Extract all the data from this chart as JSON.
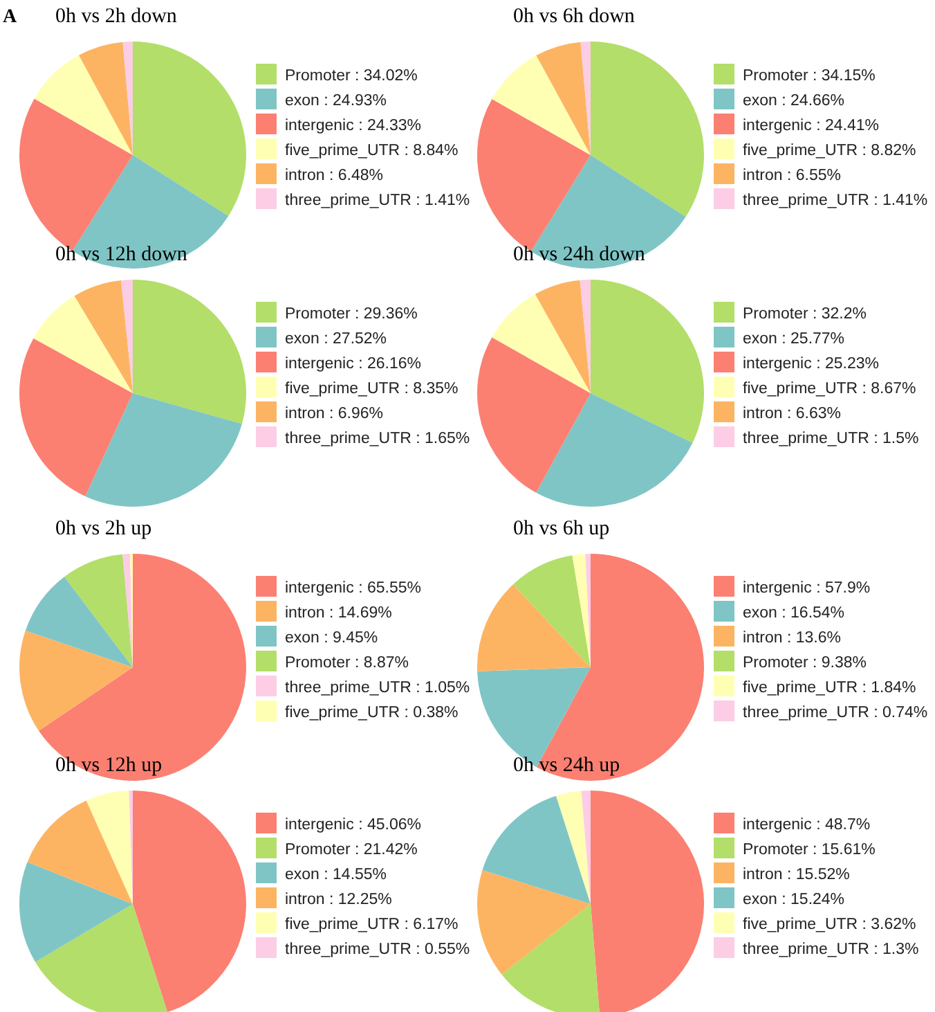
{
  "chart_data": [
    {
      "type": "pie",
      "title": "0h vs 2h down",
      "annotations": [
        "A"
      ],
      "categories": [
        "Promoter",
        "exon",
        "intergenic",
        "five_prime_UTR",
        "intron",
        "three_prime_UTR"
      ],
      "values": [
        34.02,
        24.93,
        24.33,
        8.84,
        6.48,
        1.41
      ],
      "value_labels": [
        ": 34.02%",
        ": 24.93%",
        ": 24.33%",
        ": 8.84%",
        ": 6.48%",
        ": 1.41%"
      ],
      "colors": [
        "#b3de69",
        "#80c5c5",
        "#fb8072",
        "#ffffb3",
        "#fdb462",
        "#fccde5"
      ],
      "legend": "right"
    },
    {
      "type": "pie",
      "title": "0h vs 6h down",
      "categories": [
        "Promoter",
        "exon",
        "intergenic",
        "five_prime_UTR",
        "intron",
        "three_prime_UTR"
      ],
      "values": [
        34.15,
        24.66,
        24.41,
        8.82,
        6.55,
        1.41
      ],
      "value_labels": [
        ": 34.15%",
        ": 24.66%",
        ": 24.41%",
        ": 8.82%",
        ": 6.55%",
        ": 1.41%"
      ],
      "colors": [
        "#b3de69",
        "#80c5c5",
        "#fb8072",
        "#ffffb3",
        "#fdb462",
        "#fccde5"
      ],
      "legend": "right"
    },
    {
      "type": "pie",
      "title": "0h vs 12h down",
      "categories": [
        "Promoter",
        "exon",
        "intergenic",
        "five_prime_UTR",
        "intron",
        "three_prime_UTR"
      ],
      "values": [
        29.36,
        27.52,
        26.16,
        8.35,
        6.96,
        1.65
      ],
      "value_labels": [
        ": 29.36%",
        ": 27.52%",
        ": 26.16%",
        ": 8.35%",
        ": 6.96%",
        ": 1.65%"
      ],
      "colors": [
        "#b3de69",
        "#80c5c5",
        "#fb8072",
        "#ffffb3",
        "#fdb462",
        "#fccde5"
      ],
      "legend": "right"
    },
    {
      "type": "pie",
      "title": "0h vs 24h down",
      "categories": [
        "Promoter",
        "exon",
        "intergenic",
        "five_prime_UTR",
        "intron",
        "three_prime_UTR"
      ],
      "values": [
        32.2,
        25.77,
        25.23,
        8.67,
        6.63,
        1.5
      ],
      "value_labels": [
        ": 32.2%",
        ": 25.77%",
        ": 25.23%",
        ": 8.67%",
        ": 6.63%",
        ": 1.5%"
      ],
      "colors": [
        "#b3de69",
        "#80c5c5",
        "#fb8072",
        "#ffffb3",
        "#fdb462",
        "#fccde5"
      ],
      "legend": "right"
    },
    {
      "type": "pie",
      "title": "0h vs 2h up",
      "categories": [
        "intergenic",
        "intron",
        "exon",
        "Promoter",
        "three_prime_UTR",
        "five_prime_UTR"
      ],
      "values": [
        65.55,
        14.69,
        9.45,
        8.87,
        1.05,
        0.38
      ],
      "value_labels": [
        ": 65.55%",
        ": 14.69%",
        ": 9.45%",
        ": 8.87%",
        ": 1.05%",
        ": 0.38%"
      ],
      "colors": [
        "#fb8072",
        "#fdb462",
        "#80c5c5",
        "#b3de69",
        "#fccde5",
        "#ffffb3"
      ],
      "legend": "right"
    },
    {
      "type": "pie",
      "title": "0h vs 6h up",
      "categories": [
        "intergenic",
        "exon",
        "intron",
        "Promoter",
        "five_prime_UTR",
        "three_prime_UTR"
      ],
      "values": [
        57.9,
        16.54,
        13.6,
        9.38,
        1.84,
        0.74
      ],
      "value_labels": [
        ": 57.9%",
        ": 16.54%",
        ": 13.6%",
        ": 9.38%",
        ": 1.84%",
        ": 0.74%"
      ],
      "colors": [
        "#fb8072",
        "#80c5c5",
        "#fdb462",
        "#b3de69",
        "#ffffb3",
        "#fccde5"
      ],
      "legend": "right"
    },
    {
      "type": "pie",
      "title": "0h vs 12h up",
      "categories": [
        "intergenic",
        "Promoter",
        "exon",
        "intron",
        "five_prime_UTR",
        "three_prime_UTR"
      ],
      "values": [
        45.06,
        21.42,
        14.55,
        12.25,
        6.17,
        0.55
      ],
      "value_labels": [
        ": 45.06%",
        ": 21.42%",
        ": 14.55%",
        ": 12.25%",
        ": 6.17%",
        ": 0.55%"
      ],
      "colors": [
        "#fb8072",
        "#b3de69",
        "#80c5c5",
        "#fdb462",
        "#ffffb3",
        "#fccde5"
      ],
      "legend": "right"
    },
    {
      "type": "pie",
      "title": "0h vs 24h up",
      "categories": [
        "intergenic",
        "Promoter",
        "intron",
        "exon",
        "five_prime_UTR",
        "three_prime_UTR"
      ],
      "values": [
        48.7,
        15.61,
        15.52,
        15.24,
        3.62,
        1.3
      ],
      "value_labels": [
        ": 48.7%",
        ": 15.61%",
        ": 15.52%",
        ": 15.24%",
        ": 3.62%",
        ": 1.3%"
      ],
      "colors": [
        "#fb8072",
        "#b3de69",
        "#fdb462",
        "#80c5c5",
        "#ffffb3",
        "#fccde5"
      ],
      "legend": "right"
    }
  ]
}
